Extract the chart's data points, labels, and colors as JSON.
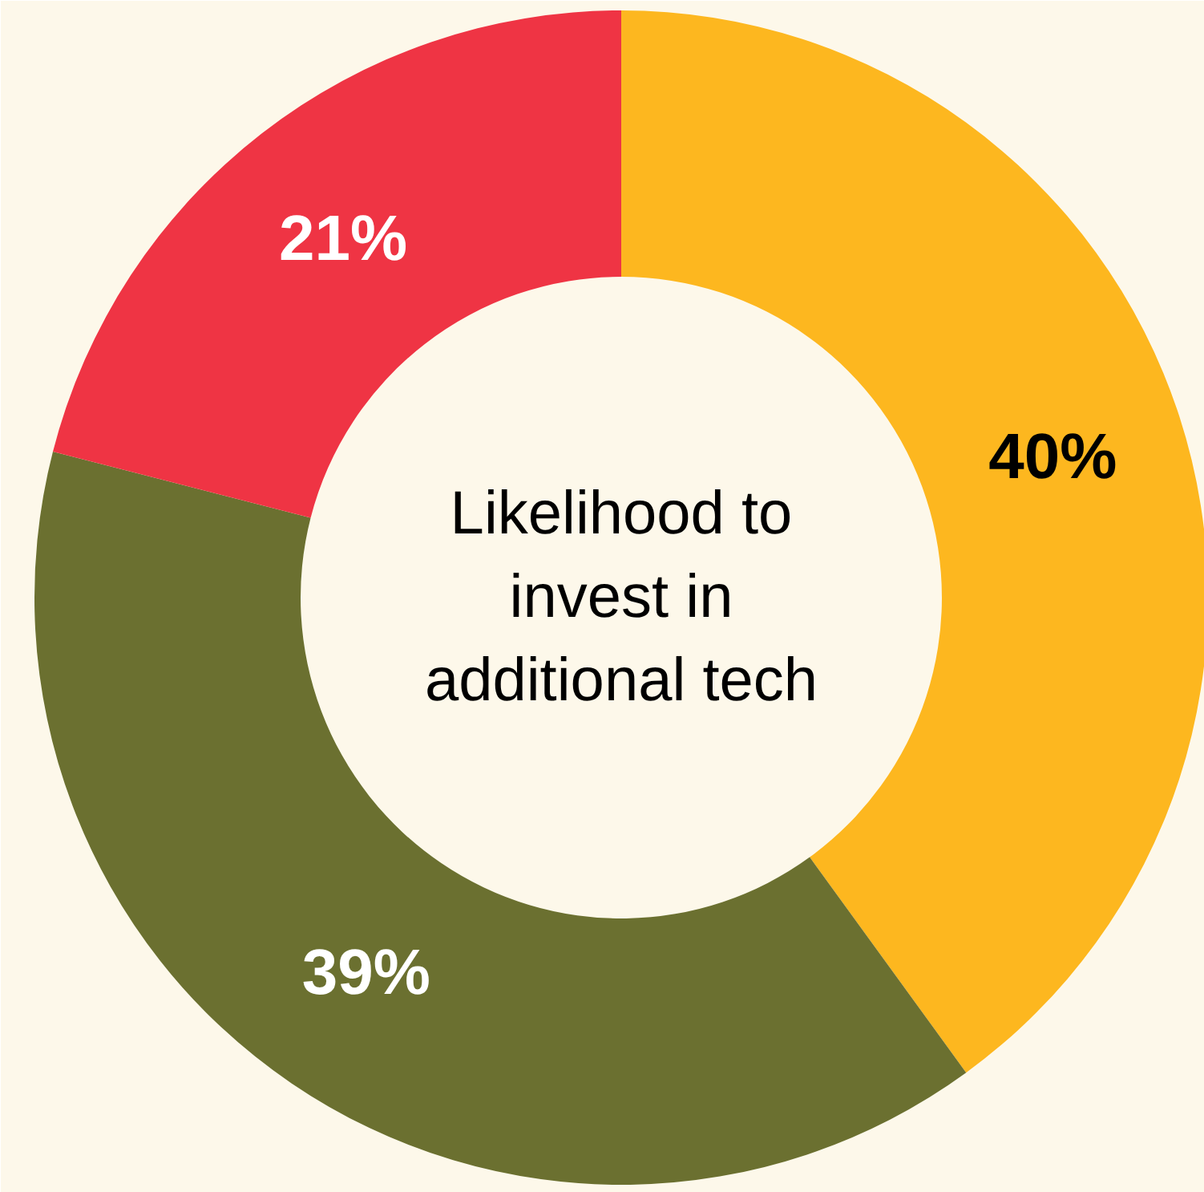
{
  "chart_data": {
    "type": "donut",
    "title": "Likelihood to invest in additional tech",
    "categories": [
      null,
      null,
      null
    ],
    "values": [
      40,
      39,
      21
    ],
    "colors": [
      "#fdb71f",
      "#6b7030",
      "#ef3444"
    ],
    "value_labels": [
      "40%",
      "39%",
      "21%"
    ]
  }
}
